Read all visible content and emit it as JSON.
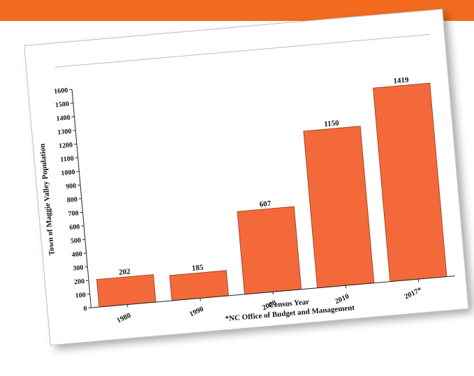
{
  "colors": {
    "header_bar": "#f26b1f",
    "bar_fill": "#f4693a",
    "bar_stroke": "#8a3a1a"
  },
  "chart_data": {
    "type": "bar",
    "categories": [
      "1980",
      "1990",
      "2000",
      "2010",
      "2017*"
    ],
    "values": [
      202,
      185,
      607,
      1150,
      1419
    ],
    "data_labels": [
      "202",
      "185",
      "607",
      "1150",
      "1419"
    ],
    "xlabel": "Census Year",
    "ylabel": "Town of Maggie Valley Population",
    "note": "*NC Office of Budget and Management",
    "ylim": [
      0,
      1600
    ],
    "yticks": [
      0,
      100,
      200,
      300,
      400,
      500,
      600,
      700,
      800,
      900,
      1000,
      1100,
      1200,
      1300,
      1400,
      1500,
      1600
    ],
    "grid": false
  }
}
